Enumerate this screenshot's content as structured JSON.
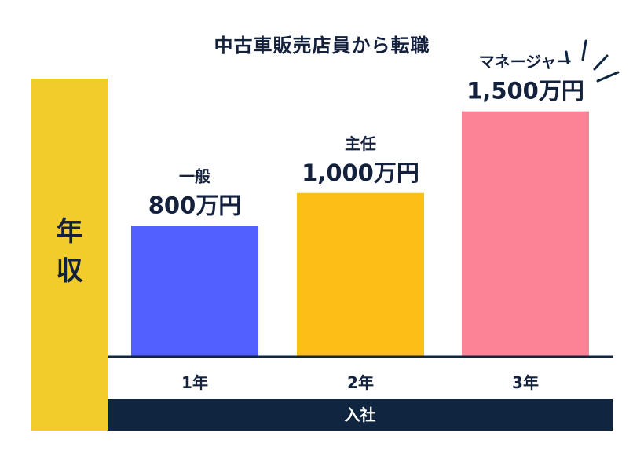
{
  "chart_data": {
    "type": "bar",
    "title": "中古車販売店員から転職",
    "ylabel": "年収",
    "xlabel": "入社",
    "categories": [
      "1年",
      "2年",
      "3年"
    ],
    "values": [
      800,
      1000,
      1500
    ],
    "roles": [
      "一般",
      "主任",
      "マネージャー"
    ],
    "value_labels": [
      "800万円",
      "1,000万円",
      "1,500万円"
    ],
    "colors": [
      "#5260ff",
      "#fdbe16",
      "#fa8395"
    ],
    "ylim": [
      0,
      1700
    ],
    "grid": false
  },
  "colors": {
    "ylabel_band": "#f2cc2a",
    "baseline_band": "#0f2540",
    "text": "#14213d",
    "emphasis_lines": "#0f2540"
  }
}
